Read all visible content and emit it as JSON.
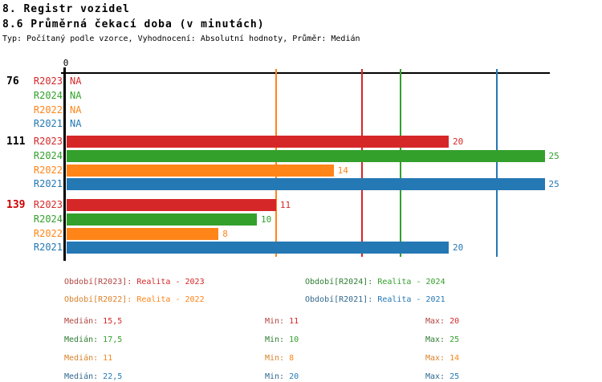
{
  "header": {
    "title": "8. Registr vozidel",
    "subtitle": "8.6 Průměrná čekací doba (v minutách)",
    "meta": "Typ: Počítaný podle vzorce, Vyhodnocení: Absolutní hodnoty, Průměr: Medián"
  },
  "colors": {
    "axis": "#000000",
    "group_highlight": "#cc0000",
    "group_normal": "#000000",
    "series": {
      "R2023": {
        "main": "#d62728",
        "dark": "#b04540"
      },
      "R2024": {
        "main": "#33a02c",
        "dark": "#2e7d32"
      },
      "R2022": {
        "main": "#ff8519",
        "dark": "#d9822b"
      },
      "R2021": {
        "main": "#2478b4",
        "dark": "#31688e"
      }
    }
  },
  "chart_data": {
    "type": "bar",
    "orientation": "horizontal",
    "title": "8.6 Průměrná čekací doba (v minutách)",
    "axis_zero_label": "0",
    "x_range": [
      0,
      25.3
    ],
    "series_order": [
      "R2023",
      "R2024",
      "R2022",
      "R2021"
    ],
    "groups": [
      {
        "label": "76",
        "highlighted": false,
        "rows": [
          {
            "series": "R2023",
            "value": null,
            "display": "NA"
          },
          {
            "series": "R2024",
            "value": null,
            "display": "NA"
          },
          {
            "series": "R2022",
            "value": null,
            "display": "NA"
          },
          {
            "series": "R2021",
            "value": null,
            "display": "NA"
          }
        ]
      },
      {
        "label": "111",
        "highlighted": false,
        "rows": [
          {
            "series": "R2023",
            "value": 20,
            "display": "20"
          },
          {
            "series": "R2024",
            "value": 25,
            "display": "25"
          },
          {
            "series": "R2022",
            "value": 14,
            "display": "14"
          },
          {
            "series": "R2021",
            "value": 25,
            "display": "25"
          }
        ]
      },
      {
        "label": "139",
        "highlighted": true,
        "rows": [
          {
            "series": "R2023",
            "value": 11,
            "display": "11"
          },
          {
            "series": "R2024",
            "value": 10,
            "display": "10"
          },
          {
            "series": "R2022",
            "value": 8,
            "display": "8"
          },
          {
            "series": "R2021",
            "value": 20,
            "display": "20"
          }
        ]
      }
    ],
    "median_lines": [
      {
        "series": "R2023",
        "value": 15.5
      },
      {
        "series": "R2024",
        "value": 17.5
      },
      {
        "series": "R2022",
        "value": 11
      },
      {
        "series": "R2021",
        "value": 22.5
      }
    ]
  },
  "legend": [
    {
      "series": "R2023",
      "prefix": "Období[R2023]:",
      "text": "Realita - 2023",
      "row": 0,
      "col": 0
    },
    {
      "series": "R2024",
      "prefix": "Období[R2024]:",
      "text": "Realita - 2024",
      "row": 0,
      "col": 1
    },
    {
      "series": "R2022",
      "prefix": "Období[R2022]:",
      "text": "Realita - 2022",
      "row": 1,
      "col": 0
    },
    {
      "series": "R2021",
      "prefix": "Období[R2021]:",
      "text": "Realita - 2021",
      "row": 1,
      "col": 1
    }
  ],
  "stats": [
    {
      "series": "R2023",
      "median_label": "Medián:",
      "median": "15,5",
      "min_label": "Min:",
      "min": "11",
      "max_label": "Max:",
      "max": "20"
    },
    {
      "series": "R2024",
      "median_label": "Medián:",
      "median": "17,5",
      "min_label": "Min:",
      "min": "10",
      "max_label": "Max:",
      "max": "25"
    },
    {
      "series": "R2022",
      "median_label": "Medián:",
      "median": "11",
      "min_label": "Min:",
      "min": "8",
      "max_label": "Max:",
      "max": "14"
    },
    {
      "series": "R2021",
      "median_label": "Medián:",
      "median": "22,5",
      "min_label": "Min:",
      "min": "20",
      "max_label": "Max:",
      "max": "25"
    }
  ]
}
